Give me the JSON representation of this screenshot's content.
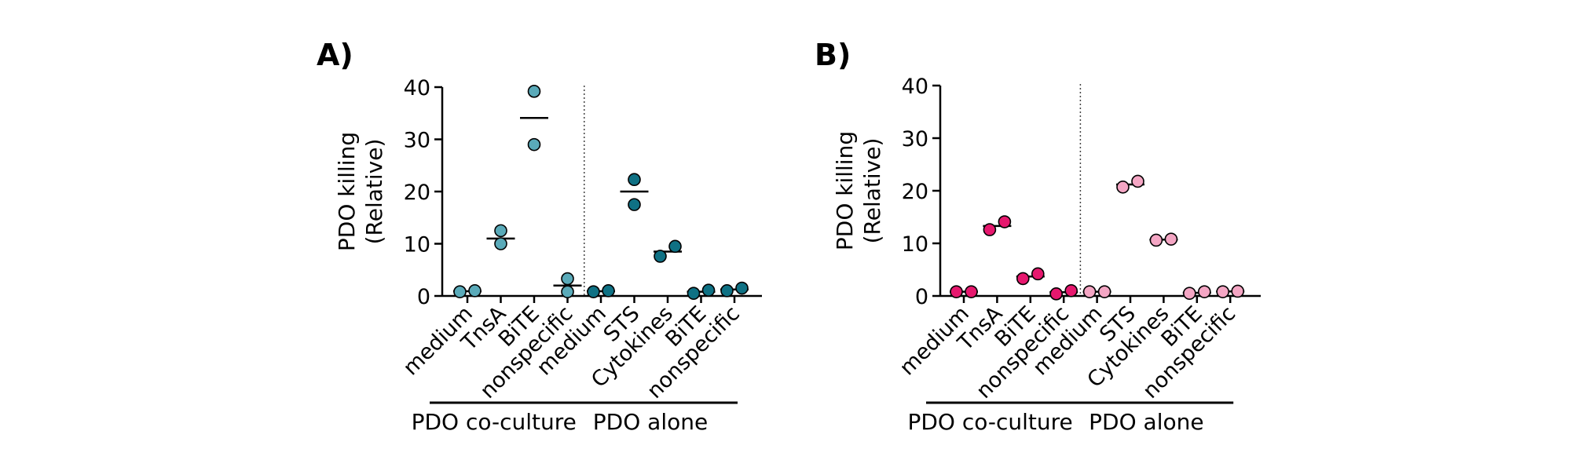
{
  "chart_data": [
    {
      "type": "scatter",
      "panel": "A)",
      "ylabel_line1": "PDO killing",
      "ylabel_line2": "(Relative)",
      "ylim": [
        0,
        40
      ],
      "yticks": [
        "0",
        "10",
        "20",
        "30",
        "40"
      ],
      "categories": [
        "medium",
        "TnsA",
        "BiTE",
        "nonspecific",
        "medium",
        "STS",
        "Cytokines",
        "BiTE",
        "nonspecific"
      ],
      "groups": [
        {
          "label": "PDO co-culture",
          "start": 0,
          "end": 3,
          "color": "#5aaab9"
        },
        {
          "label": "PDO alone",
          "start": 4,
          "end": 8,
          "color": "#0f7184"
        }
      ],
      "points": [
        [
          0.8,
          1.0
        ],
        [
          10.0,
          12.5
        ],
        [
          29.0,
          39.2
        ],
        [
          0.8,
          3.3
        ],
        [
          0.8,
          1.0
        ],
        [
          17.5,
          22.3
        ],
        [
          7.6,
          9.5
        ],
        [
          0.5,
          1.1
        ],
        [
          1.0,
          1.5
        ]
      ],
      "means": [
        0.9,
        11.0,
        34.1,
        2.0,
        0.9,
        20.0,
        8.5,
        0.8,
        1.25
      ],
      "divider_after": 3
    },
    {
      "type": "scatter",
      "panel": "B)",
      "ylabel_line1": "PDO killing",
      "ylabel_line2": "(Relative)",
      "ylim": [
        0,
        40
      ],
      "yticks": [
        "0",
        "10",
        "20",
        "30",
        "40"
      ],
      "categories": [
        "medium",
        "TnsA",
        "BiTE",
        "nonspecific",
        "medium",
        "STS",
        "Cytokines",
        "BiTE",
        "nonspecific"
      ],
      "groups": [
        {
          "label": "PDO co-culture",
          "start": 0,
          "end": 3,
          "color": "#e6186e"
        },
        {
          "label": "PDO alone",
          "start": 4,
          "end": 8,
          "color": "#f4a6c4"
        }
      ],
      "points": [
        [
          0.8,
          0.8
        ],
        [
          12.6,
          14.1
        ],
        [
          3.3,
          4.2
        ],
        [
          0.4,
          1.0
        ],
        [
          0.8,
          0.8
        ],
        [
          20.7,
          21.8
        ],
        [
          10.6,
          10.8
        ],
        [
          0.5,
          0.8
        ],
        [
          0.8,
          0.9
        ]
      ],
      "means": [
        0.8,
        13.3,
        3.7,
        0.7,
        0.8,
        21.2,
        10.7,
        0.6,
        0.85
      ],
      "divider_after": 3
    }
  ]
}
